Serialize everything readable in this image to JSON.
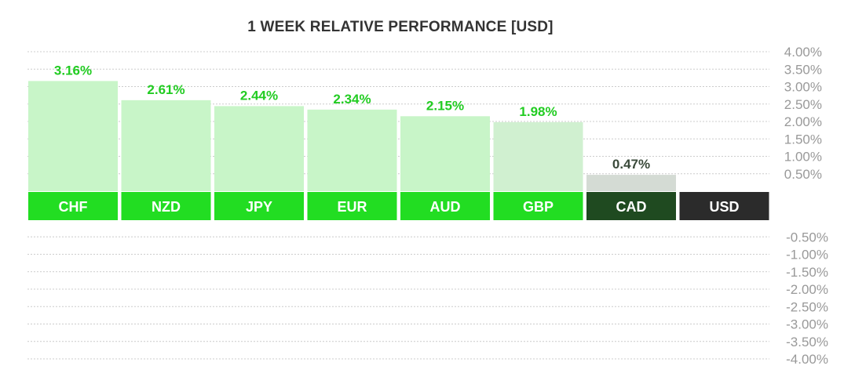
{
  "chart_data": {
    "type": "bar",
    "title": "1 WEEK RELATIVE PERFORMANCE  [USD]",
    "categories": [
      "CHF",
      "NZD",
      "JPY",
      "EUR",
      "AUD",
      "GBP",
      "CAD",
      "USD"
    ],
    "values": [
      3.16,
      2.61,
      2.44,
      2.34,
      2.15,
      1.98,
      0.47,
      0.0
    ],
    "value_labels": [
      "3.16%",
      "2.61%",
      "2.44%",
      "2.34%",
      "2.15%",
      "1.98%",
      "0.47%",
      ""
    ],
    "positive_ticks": [
      "4.00%",
      "3.50%",
      "3.00%",
      "2.50%",
      "2.00%",
      "1.50%",
      "1.00%",
      "0.50%"
    ],
    "negative_ticks": [
      "-0.50%",
      "-1.00%",
      "-1.50%",
      "-2.00%",
      "-2.50%",
      "-3.00%",
      "-3.50%",
      "-4.00%"
    ],
    "ylim": [
      -4.0,
      4.0
    ],
    "grid": true,
    "label_colors": [
      "#22dd22",
      "#22dd22",
      "#22dd22",
      "#22dd22",
      "#22dd22",
      "#22dd22",
      "#1f4a20",
      "#2b2b2b"
    ],
    "bar_colors": [
      "#c8f5c8",
      "#c8f5c8",
      "#c8f5c8",
      "#c8f5c8",
      "#c8f5c8",
      "#d0f0d0",
      "#d4dbd4",
      "#ffffff"
    ],
    "value_text_colors": [
      "#22cc22",
      "#22cc22",
      "#22cc22",
      "#22cc22",
      "#22cc22",
      "#22cc22",
      "#3a4a3a",
      "#333333"
    ]
  }
}
